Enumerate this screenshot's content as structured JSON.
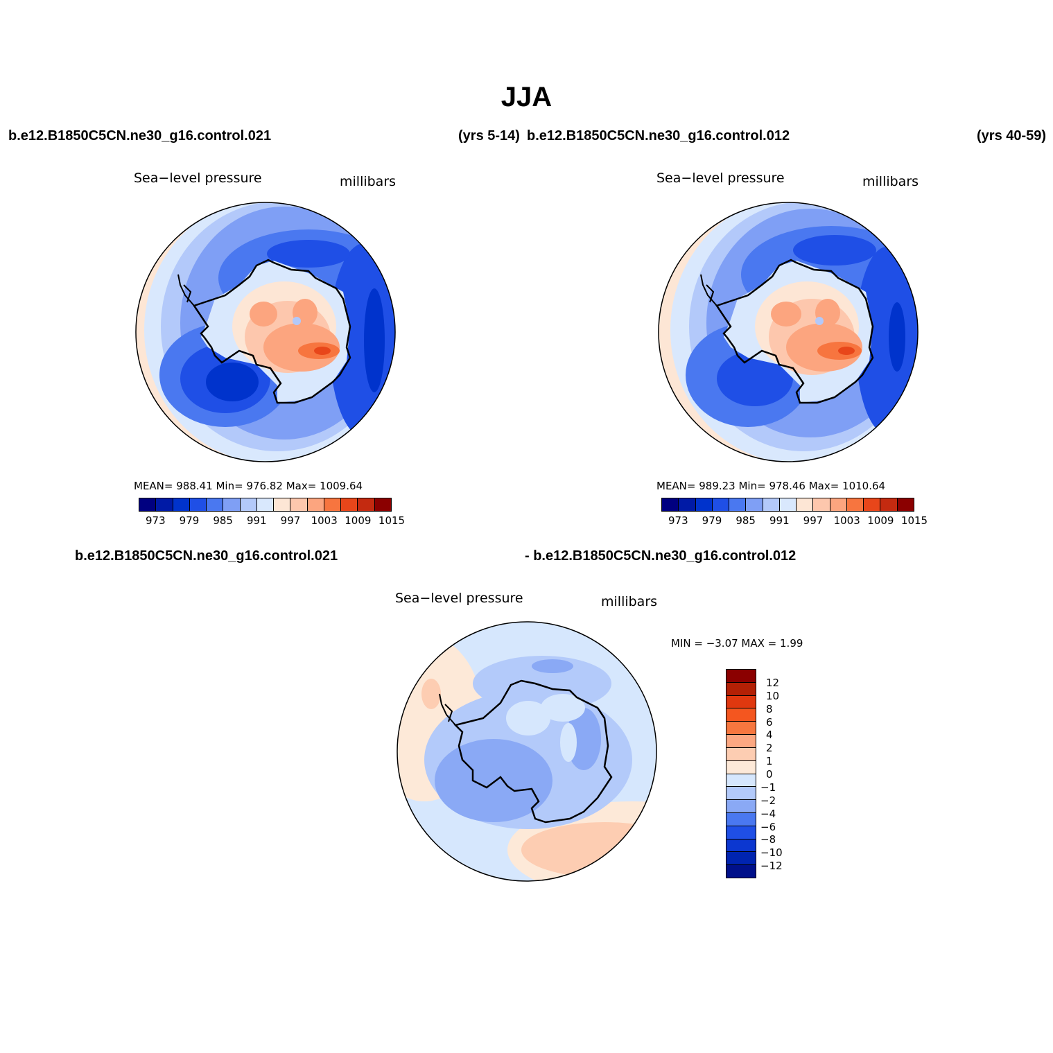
{
  "title": "JJA",
  "header": {
    "case1": "b.e12.B1850C5CN.ne30_g16.control.021",
    "years1": "(yrs 5-14)",
    "case2": "b.e12.B1850C5CN.ne30_g16.control.012",
    "years2": "(yrs 40-59)",
    "diff_case1": "b.e12.B1850C5CN.ne30_g16.control.021",
    "diff_case2": "- b.e12.B1850C5CN.ne30_g16.control.012"
  },
  "panels": [
    {
      "variable": "Sea−level pressure",
      "units": "millibars",
      "stats": "MEAN=  988.41    Min=  976.82    Max=  1009.64",
      "mean": 988.41,
      "min": 976.82,
      "max": 1009.64
    },
    {
      "variable": "Sea−level pressure",
      "units": "millibars",
      "stats": "MEAN=  989.23    Min=  978.46    Max=  1010.64",
      "mean": 989.23,
      "min": 978.46,
      "max": 1010.64
    },
    {
      "variable": "Sea−level pressure",
      "units": "millibars",
      "stats": "MIN =    −3.07  MAX =     1.99",
      "min": -3.07,
      "max": 1.99
    }
  ],
  "colorbar_abs": {
    "colors": [
      "#000080",
      "#001aa6",
      "#0033cc",
      "#1f4fe6",
      "#4a78f0",
      "#7f9ff5",
      "#b3c9fa",
      "#d9e8fd",
      "#fde6d5",
      "#fdc7ad",
      "#fca57f",
      "#f7753f",
      "#e8461a",
      "#c42a10",
      "#8b0000"
    ],
    "labels": [
      "973",
      "979",
      "985",
      "991",
      "997",
      "1003",
      "1009",
      "1015"
    ]
  },
  "colorbar_diff": {
    "colors": [
      "#8b0000",
      "#b32005",
      "#e0380f",
      "#f4561f",
      "#f7773f",
      "#fca882",
      "#fdcdb2",
      "#fde9d8",
      "#d6e7fd",
      "#b3cafa",
      "#8aa9f5",
      "#4a78f0",
      "#1f4fe6",
      "#0c37d0",
      "#0024b0",
      "#00108a"
    ],
    "labels": [
      "12",
      "10",
      "8",
      "6",
      "4",
      "2",
      "1",
      "0",
      "−1",
      "−2",
      "−4",
      "−6",
      "−8",
      "−10",
      "−12"
    ]
  }
}
